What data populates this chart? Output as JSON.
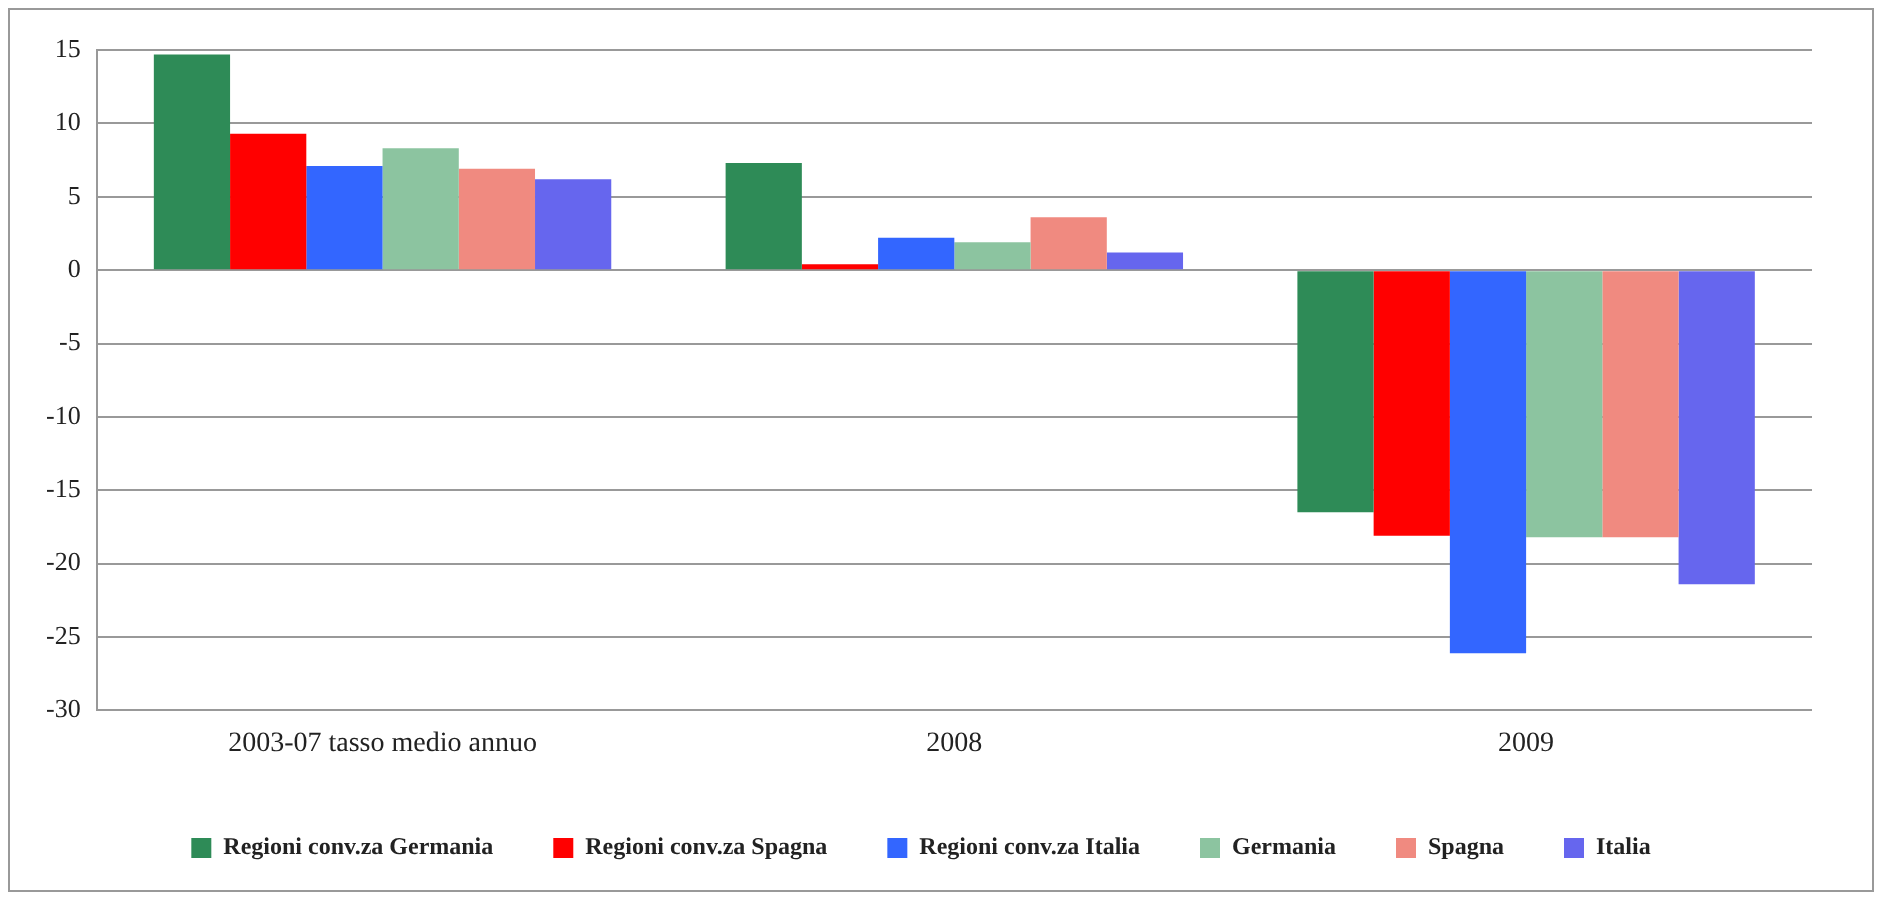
{
  "chart_data": {
    "type": "bar",
    "categories": [
      "2003-07 tasso medio annuo",
      "2008",
      "2009"
    ],
    "series": [
      {
        "name": "Regioni conv.za Germania",
        "color": "#2e8b57",
        "values": [
          14.7,
          7.3,
          -16.5
        ]
      },
      {
        "name": "Regioni conv.za Spagna",
        "color": "#ff0000",
        "values": [
          9.3,
          0.4,
          -18.1
        ]
      },
      {
        "name": "Regioni conv.za Italia",
        "color": "#3366ff",
        "values": [
          7.1,
          2.2,
          -26.1
        ]
      },
      {
        "name": "Germania",
        "color": "#8cc4a0",
        "values": [
          8.3,
          1.9,
          -18.2
        ]
      },
      {
        "name": "Spagna",
        "color": "#f08a80",
        "values": [
          6.9,
          3.6,
          -18.2
        ]
      },
      {
        "name": "Italia",
        "color": "#6666ee",
        "values": [
          6.2,
          1.2,
          -21.4
        ]
      }
    ],
    "ylim": [
      -30,
      15
    ],
    "yticks": [
      -30,
      -25,
      -20,
      -15,
      -10,
      -5,
      0,
      5,
      10,
      15
    ],
    "grid": "y",
    "legend": "bottom"
  }
}
